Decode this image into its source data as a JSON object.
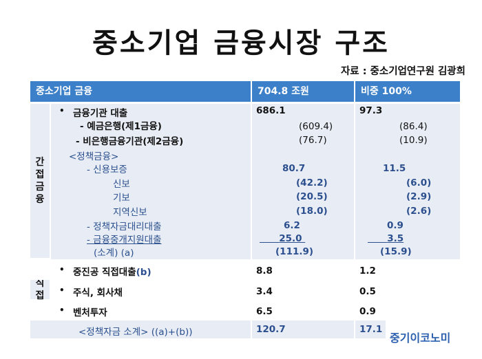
{
  "title": "중소기업 금융시장 구조",
  "source": "자료 : 중소기업연구원 김광희",
  "header": {
    "col1": "중소기업 금융",
    "col2": "704.8 조원",
    "col3": "비중 100%"
  },
  "groups": {
    "indirect": "간접금융",
    "direct": "직접"
  },
  "rows": {
    "loan": {
      "label": "금융기관 대출",
      "v": "686.1",
      "p": "97.3"
    },
    "deposit_bank": {
      "label": "- 예금은행(제1금융)",
      "v": "(609.4)",
      "p": "(86.4)"
    },
    "nonbank": {
      "label": "- 비은행금융기관(제2금융)",
      "v": "(76.7)",
      "p": "(10.9)"
    },
    "policy_header": {
      "label": "<정책금융>"
    },
    "credit_guarantee": {
      "label": "- 신용보증",
      "v": "80.7",
      "p": "11.5"
    },
    "shinbo": {
      "label": "신보",
      "v": "(42.2)",
      "p": "(6.0)"
    },
    "kibo": {
      "label": "기보",
      "v": "(20.5)",
      "p": "(2.9)"
    },
    "regional": {
      "label": "지역신보",
      "v": "(18.0)",
      "p": "(2.6)"
    },
    "agency_loan": {
      "label": "- 정책자금대리대출",
      "v": "6.2",
      "p": "0.9"
    },
    "onlending": {
      "label": "- 금융중개지원대출",
      "v": "25.0",
      "p": "3.5"
    },
    "subtotal": {
      "label": "(소계) (a)",
      "v": "(111.9)",
      "p": "(15.9)"
    },
    "direct_loan": {
      "label": "중진공 직접대출",
      "label_suffix": "(b)",
      "v": "8.8",
      "p": "1.2"
    },
    "stocks": {
      "label": "주식, 회사채",
      "v": "3.4",
      "p": "0.5"
    },
    "venture": {
      "label": "벤처투자",
      "v": "6.5",
      "p": "0.9"
    },
    "policy_total": {
      "label": "<정책자금 소계> ((a)+(b))",
      "v": "120.7",
      "p": "17.1"
    }
  },
  "logo": "중기이코노미",
  "colors": {
    "header_bg": "#3c80c9",
    "band_bg": "#e8edf5",
    "policy_text": "#2b4f8e",
    "logo": "#2a5fae"
  }
}
